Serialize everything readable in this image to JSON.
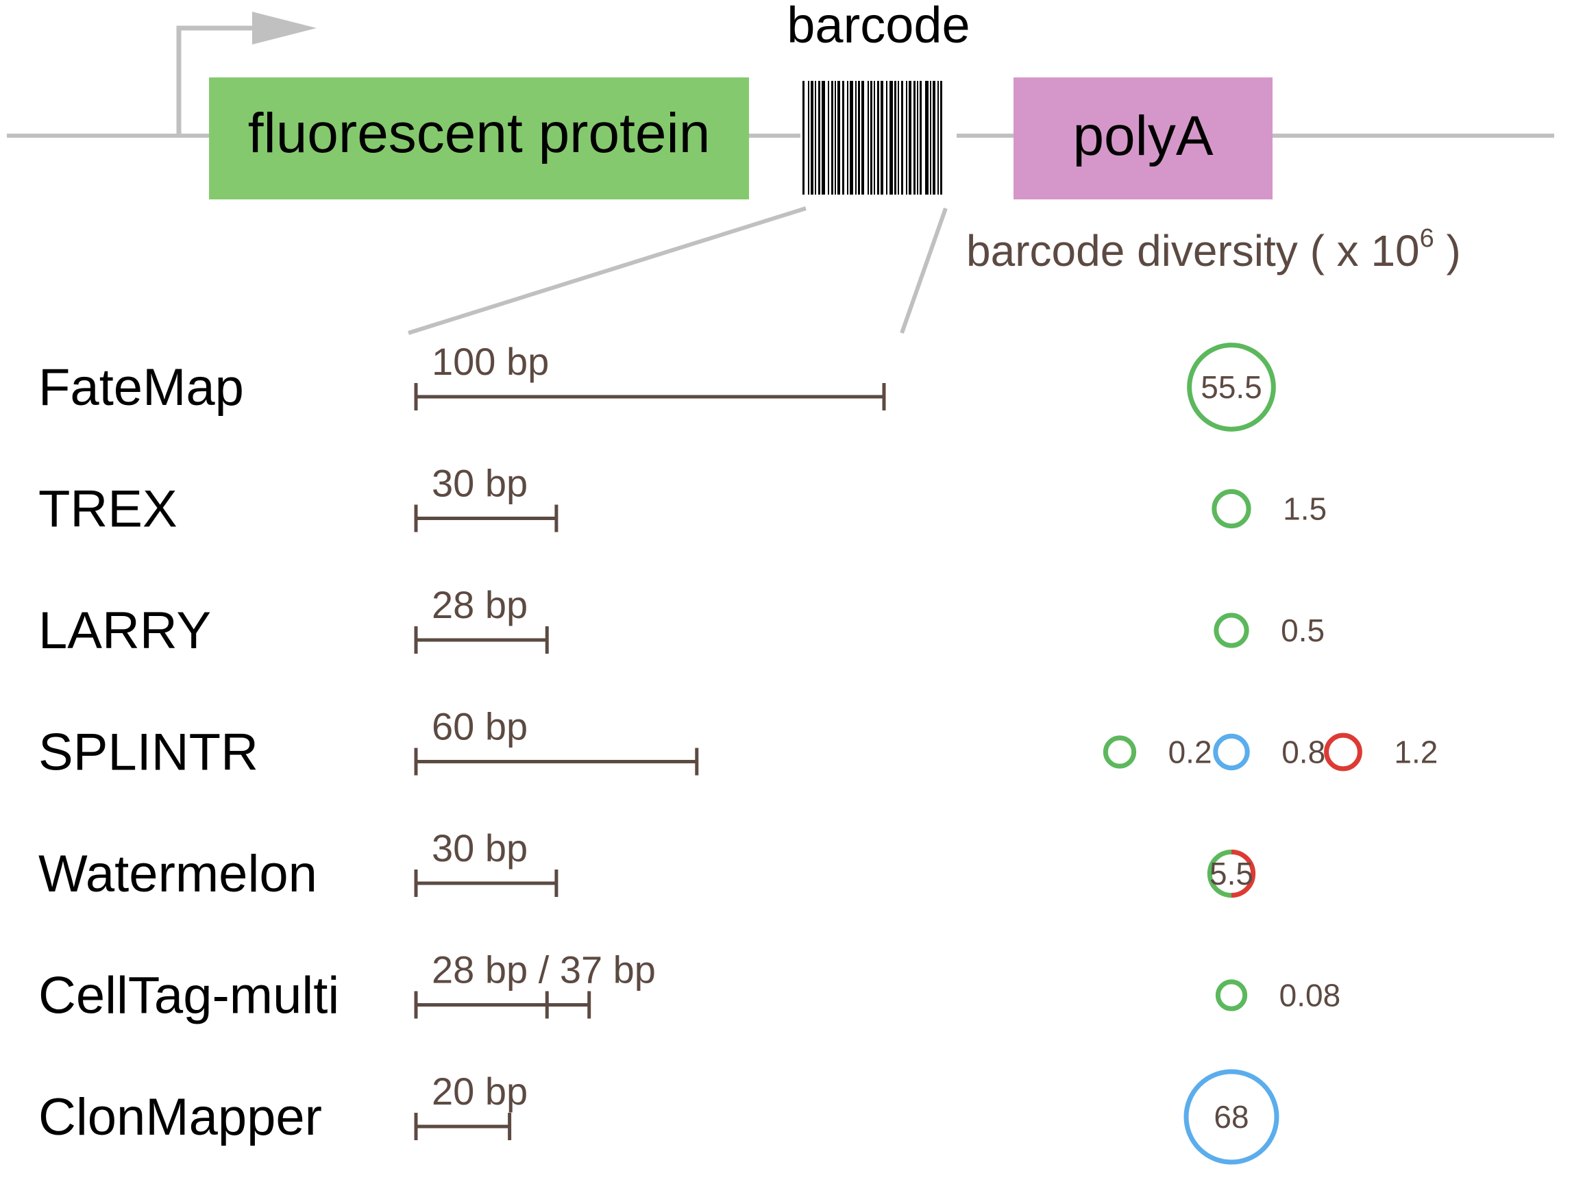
{
  "construct": {
    "promoter_icon": "right-arrow-promoter",
    "fluorescent_protein_label": "fluorescent protein",
    "fluorescent_protein_color": "#85c96e",
    "barcode_label": "barcode",
    "polyA_label": "polyA",
    "polyA_color": "#d597c9",
    "line_color": "#c0c0c0"
  },
  "diversity_header": {
    "prefix": "barcode diversity ( x 10",
    "exponent": "6",
    "suffix": " )"
  },
  "methods": [
    {
      "name": "FateMap",
      "length_label": "100 bp",
      "lengths_bp": [
        100
      ],
      "diversity": [
        {
          "value": "55.5",
          "colors": [
            "#5cb85c"
          ]
        }
      ]
    },
    {
      "name": "TREX",
      "length_label": "30 bp",
      "lengths_bp": [
        30
      ],
      "diversity": [
        {
          "value": "1.5",
          "colors": [
            "#5cb85c"
          ]
        }
      ]
    },
    {
      "name": "LARRY",
      "length_label": "28 bp",
      "lengths_bp": [
        28
      ],
      "diversity": [
        {
          "value": "0.5",
          "colors": [
            "#5cb85c"
          ]
        }
      ]
    },
    {
      "name": "SPLINTR",
      "length_label": "60 bp",
      "lengths_bp": [
        60
      ],
      "diversity": [
        {
          "value": "0.2",
          "colors": [
            "#5cb85c"
          ]
        },
        {
          "value": "0.8",
          "colors": [
            "#5badec"
          ]
        },
        {
          "value": "1.2",
          "colors": [
            "#dc3b34"
          ]
        }
      ]
    },
    {
      "name": "Watermelon",
      "length_label": "30 bp",
      "lengths_bp": [
        30
      ],
      "diversity": [
        {
          "value": "5.5",
          "colors": [
            "#5cb85c",
            "#dc3b34"
          ]
        }
      ]
    },
    {
      "name": "CellTag-multi",
      "length_label": "28 bp / 37 bp",
      "lengths_bp": [
        28,
        37
      ],
      "diversity": [
        {
          "value": "0.08",
          "colors": [
            "#5cb85c"
          ]
        }
      ]
    },
    {
      "name": "ClonMapper",
      "length_label": "20 bp",
      "lengths_bp": [
        20
      ],
      "diversity": [
        {
          "value": "68",
          "colors": [
            "#5badec"
          ]
        }
      ]
    }
  ],
  "colors": {
    "scale_bar": "#5c4a42",
    "method_text": "#000000",
    "annotation_text": "#5c4a42"
  }
}
